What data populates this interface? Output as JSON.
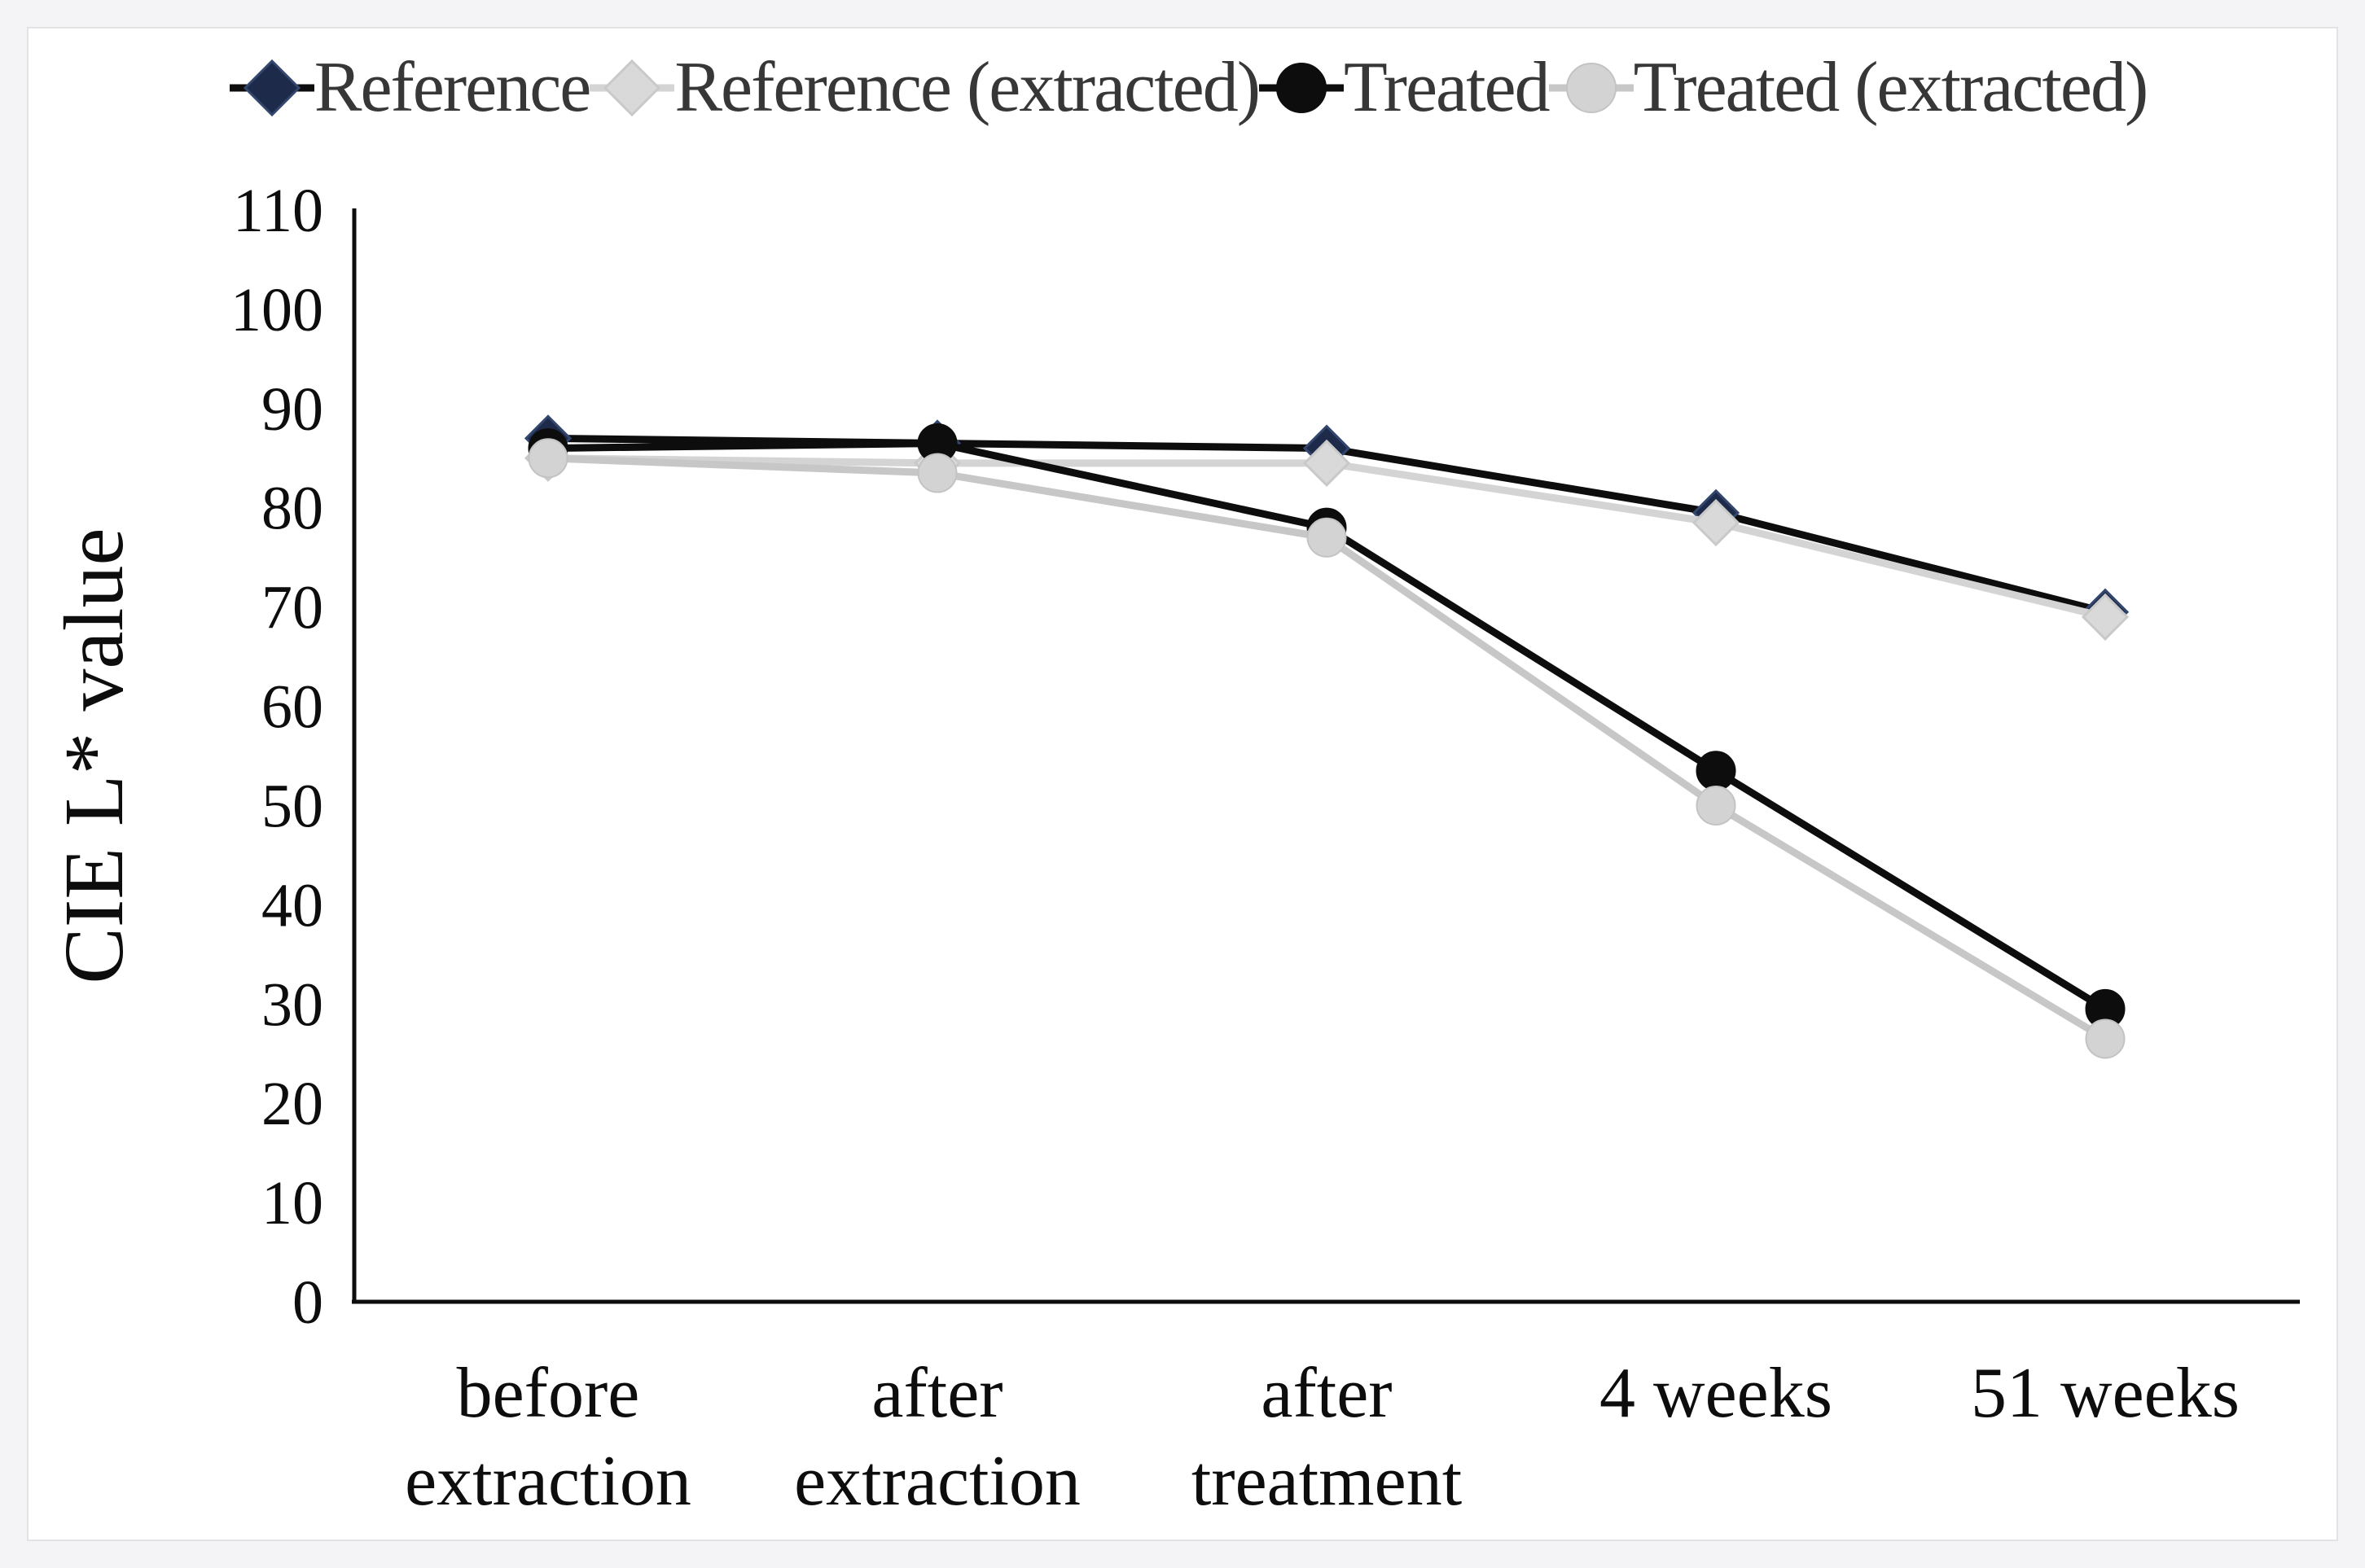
{
  "figure": {
    "outer_background": "#f4f4f6",
    "panel_background": "#ffffff",
    "panel_border_color": "#e3e3e6",
    "axis_color": "#0d0d0d",
    "tick_label_color": "#0d0d0d",
    "x_label_color": "#0d0d0d",
    "legend_text_color": "#373737"
  },
  "chart_data": {
    "type": "line",
    "title": "",
    "xlabel": "",
    "ylabel": "CIE L* value",
    "ylim": [
      0,
      110
    ],
    "yticks": [
      0,
      10,
      20,
      30,
      40,
      50,
      60,
      70,
      80,
      90,
      100,
      110
    ],
    "grid": false,
    "legend_position": "top",
    "categories": [
      "before\nextraction",
      "after\nextraction",
      "after\ntreatment",
      "4 weeks",
      "51 weeks"
    ],
    "series": [
      {
        "name": "Reference",
        "marker": "diamond",
        "marker_color": "#1e2a4a",
        "marker_edge_color": "#32466e",
        "line_color": "#0d0d0d",
        "values": [
          87,
          86.5,
          86,
          79.5,
          69.5
        ]
      },
      {
        "name": "Reference (extracted)",
        "marker": "diamond",
        "marker_color": "#d9d9d9",
        "marker_edge_color": "#c9c9c9",
        "line_color": "#d4d4d4",
        "values": [
          85,
          84.5,
          84.5,
          78.5,
          69
        ]
      },
      {
        "name": "Treated",
        "marker": "circle",
        "marker_color": "#0d0d0d",
        "marker_edge_color": "#0d0d0d",
        "line_color": "#0d0d0d",
        "values": [
          86,
          86.5,
          78,
          53.5,
          29.5
        ]
      },
      {
        "name": "Treated (extracted)",
        "marker": "circle",
        "marker_color": "#d3d3d3",
        "marker_edge_color": "#c3c3c3",
        "line_color": "#c7c7c7",
        "values": [
          85,
          83.5,
          77,
          50,
          26.5
        ]
      }
    ]
  }
}
